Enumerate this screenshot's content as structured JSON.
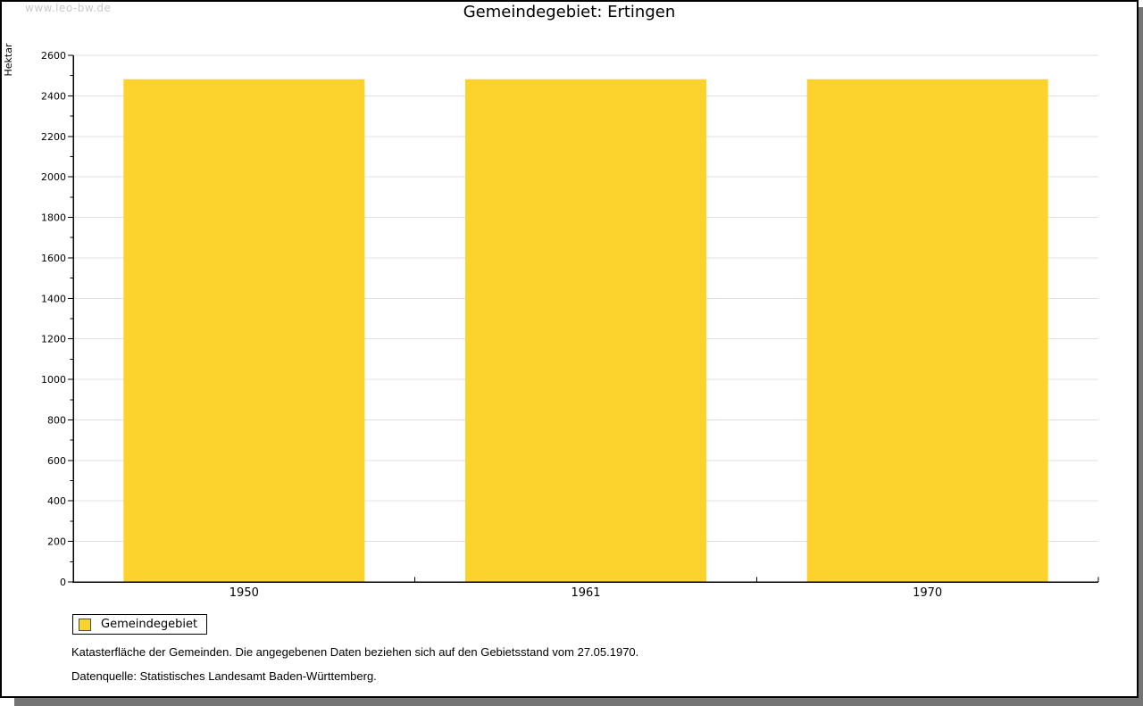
{
  "watermark": "www.leo-bw.de",
  "title": "Gemeindegebiet: Ertingen",
  "chart_data": {
    "type": "bar",
    "title": "Gemeindegebiet: Ertingen",
    "categories": [
      "1950",
      "1961",
      "1970"
    ],
    "values": [
      2482,
      2482,
      2482
    ],
    "series_name": "Gemeindegebiet",
    "xlabel": "",
    "ylabel": "Hektar",
    "ylim": [
      0,
      2600
    ],
    "ytick_major": 200,
    "ytick_minor": 100,
    "grid": "horizontal major gridlines only",
    "legend_position": "bottom-left",
    "bar_color": "#fcd32d"
  },
  "legend": {
    "items": [
      {
        "label": "Gemeindegebiet",
        "color": "#fcd32d"
      }
    ]
  },
  "footnotes": {
    "line1": "Katasterfläche der Gemeinden. Die angegebenen Daten beziehen sich auf den Gebietsstand vom 27.05.1970.",
    "line2": "Datenquelle: Statistisches Landesamt Baden-Württemberg."
  },
  "colors": {
    "bar": "#fcd32d",
    "gridline": "#e0e0e0",
    "axis": "#000000",
    "text": "#000000",
    "watermark": "#c9c9c9",
    "shadow": "#757575",
    "background": "#ffffff"
  }
}
